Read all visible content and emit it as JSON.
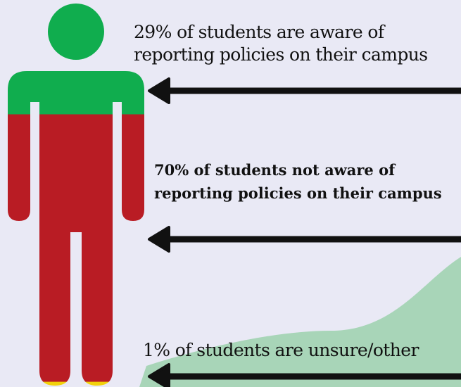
{
  "chart_data": {
    "type": "pictograph",
    "segments": [
      {
        "label": "29% of students are aware of reporting policies on their campus",
        "value": 29,
        "color": "#10ad4e"
      },
      {
        "label": "70% of students not aware of reporting policies on their campus",
        "value": 70,
        "color": "#b91c24"
      },
      {
        "label": "1% of students are unsure/other",
        "value": 1,
        "color": "#f2d10b"
      }
    ]
  },
  "colors": {
    "background": "#e9e9f5",
    "hill": "#a8d5b8",
    "arrow": "#111111"
  }
}
